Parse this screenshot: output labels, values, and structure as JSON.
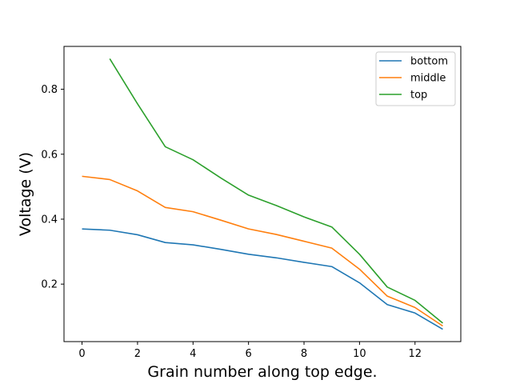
{
  "chart_data": {
    "type": "line",
    "xlabel": "Grain number along top edge.",
    "ylabel": "Voltage (V)",
    "xlim": [
      -0.65,
      13.65
    ],
    "ylim": [
      0.023,
      0.932
    ],
    "xticks": [
      0,
      2,
      4,
      6,
      8,
      10,
      12
    ],
    "yticks": [
      0.2,
      0.4,
      0.6,
      0.8
    ],
    "ytick_labels": [
      "0.2",
      "0.4",
      "0.6",
      "0.8"
    ],
    "grid": false,
    "legend_position": "top-right",
    "series": [
      {
        "name": "bottom",
        "color": "#1f77b4",
        "x": [
          0,
          1,
          2,
          3,
          4,
          5,
          6,
          7,
          8,
          9,
          10,
          11,
          12,
          13
        ],
        "y": [
          0.37,
          0.366,
          0.352,
          0.328,
          0.321,
          0.307,
          0.292,
          0.281,
          0.267,
          0.254,
          0.204,
          0.137,
          0.111,
          0.061
        ]
      },
      {
        "name": "middle",
        "color": "#ff7f0e",
        "x": [
          0,
          1,
          2,
          3,
          4,
          5,
          6,
          7,
          8,
          9,
          10,
          11,
          12,
          13
        ],
        "y": [
          0.532,
          0.522,
          0.487,
          0.436,
          0.423,
          0.397,
          0.37,
          0.353,
          0.332,
          0.311,
          0.246,
          0.163,
          0.128,
          0.071
        ]
      },
      {
        "name": "top",
        "color": "#2ca02c",
        "x": [
          1,
          2,
          3,
          4,
          5,
          6,
          7,
          8,
          9,
          10,
          11,
          12,
          13
        ],
        "y": [
          0.894,
          0.755,
          0.623,
          0.583,
          0.527,
          0.474,
          0.442,
          0.407,
          0.376,
          0.292,
          0.191,
          0.15,
          0.08
        ]
      }
    ]
  }
}
